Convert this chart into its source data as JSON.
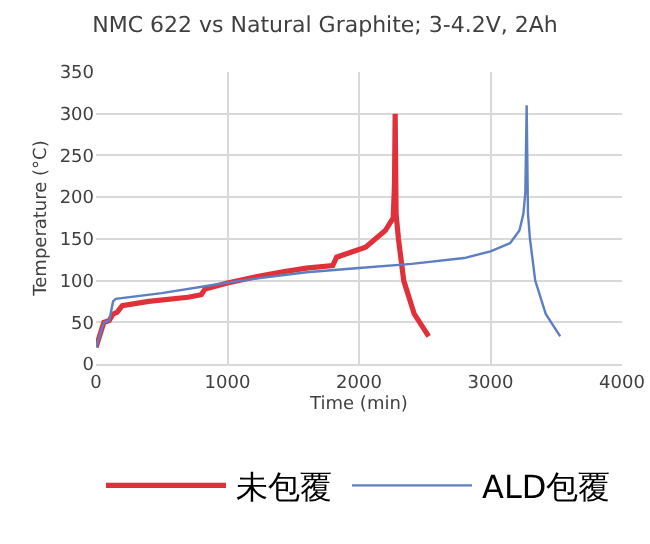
{
  "chart_data": {
    "type": "line",
    "title": "NMC 622 vs Natural Graphite; 3-4.2V, 2Ah",
    "xlabel": "Time (min)",
    "ylabel": "Temperature (°C)",
    "series": [
      {
        "name": "未包覆",
        "color": "#e0303a",
        "x": [
          0,
          60,
          100,
          130,
          160,
          200,
          400,
          700,
          800,
          830,
          1000,
          1200,
          1400,
          1600,
          1800,
          1830,
          2050,
          2200,
          2260,
          2270,
          2275,
          2282,
          2300,
          2340,
          2420,
          2530
        ],
        "values": [
          20,
          50,
          52,
          60,
          62,
          70,
          75,
          80,
          83,
          90,
          97,
          104,
          110,
          115,
          118,
          128,
          140,
          160,
          175,
          215,
          300,
          180,
          150,
          100,
          60,
          33
        ]
      },
      {
        "name": "ALD包覆",
        "color": "#5b7fc0",
        "x": [
          0,
          60,
          100,
          130,
          150,
          500,
          900,
          1100,
          1600,
          2000,
          2400,
          2800,
          3000,
          3150,
          3220,
          3250,
          3265,
          3275,
          3285,
          3300,
          3340,
          3420,
          3530
        ],
        "values": [
          20,
          50,
          52,
          75,
          78,
          85,
          95,
          100,
          110,
          115,
          120,
          127,
          135,
          145,
          160,
          180,
          205,
          310,
          180,
          150,
          100,
          60,
          33
        ]
      }
    ],
    "xlim": [
      0,
      4000
    ],
    "xticks": [
      0,
      1000,
      2000,
      3000,
      4000
    ],
    "ylim": [
      0,
      350
    ],
    "yticks": [
      0,
      50,
      100,
      150,
      200,
      250,
      300,
      350
    ],
    "grid": true,
    "legend": "bottom",
    "marker": "none",
    "line_style": "solid"
  }
}
